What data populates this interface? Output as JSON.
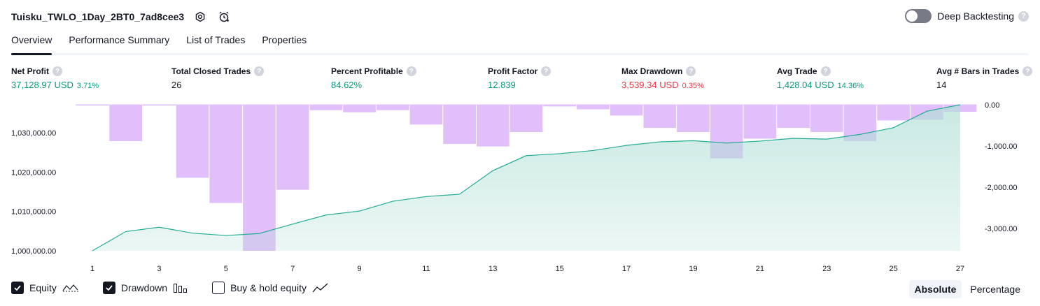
{
  "header": {
    "title": "Tuisku_TWLO_1Day_2BT0_7ad8cee3",
    "deep_backtesting_label": "Deep Backtesting"
  },
  "tabs": [
    {
      "label": "Overview",
      "active": true
    },
    {
      "label": "Performance Summary",
      "active": false
    },
    {
      "label": "List of Trades",
      "active": false
    },
    {
      "label": "Properties",
      "active": false
    }
  ],
  "metrics": {
    "net_profit": {
      "label": "Net Profit",
      "value": "37,128.97 USD",
      "pct": "3.71%"
    },
    "total_closed_trades": {
      "label": "Total Closed Trades",
      "value": "26"
    },
    "percent_profitable": {
      "label": "Percent Profitable",
      "value": "84.62%"
    },
    "profit_factor": {
      "label": "Profit Factor",
      "value": "12.839"
    },
    "max_drawdown": {
      "label": "Max Drawdown",
      "value": "3,539.34 USD",
      "pct": "0.35%"
    },
    "avg_trade": {
      "label": "Avg Trade",
      "value": "1,428.04 USD",
      "pct": "14.36%"
    },
    "avg_bars": {
      "label": "Avg # Bars in Trades",
      "value": "14"
    }
  },
  "legend": {
    "equity_label": "Equity",
    "drawdown_label": "Drawdown",
    "buyhold_label": "Buy & hold equity",
    "equity_checked": true,
    "drawdown_checked": true,
    "buyhold_checked": false
  },
  "scale_toggle": {
    "absolute_label": "Absolute",
    "percentage_label": "Percentage",
    "selected": "Absolute"
  },
  "colors": {
    "equity_line": "#22ab94",
    "equity_fill": "#b2dfd6",
    "drawdown_fill": "#e1bffb",
    "positive": "#089981",
    "negative": "#f23645"
  },
  "chart_data": {
    "type": "area",
    "x": [
      1,
      2,
      3,
      4,
      5,
      6,
      7,
      8,
      9,
      10,
      11,
      12,
      13,
      14,
      15,
      16,
      17,
      18,
      19,
      20,
      21,
      22,
      23,
      24,
      25,
      26,
      27
    ],
    "x_ticks": [
      "1",
      "3",
      "5",
      "7",
      "9",
      "11",
      "13",
      "15",
      "17",
      "19",
      "21",
      "23",
      "25",
      "27"
    ],
    "series": [
      {
        "axis": "left",
        "values": [
          1000000,
          1004900,
          1006000,
          1004500,
          1003900,
          1004400,
          1006800,
          1009100,
          1010100,
          1012600,
          1013800,
          1014400,
          1020400,
          1024200,
          1024700,
          1025500,
          1026800,
          1027700,
          1028000,
          1027400,
          1027900,
          1028600,
          1028400,
          1029600,
          1031300,
          1035500,
          1037129
        ]
      },
      {
        "axis": "right",
        "values": [
          -10,
          -880,
          -5,
          -1770,
          -2380,
          -3540,
          -2060,
          -130,
          -180,
          -130,
          -480,
          -950,
          -1010,
          -660,
          -40,
          -110,
          -260,
          -560,
          -660,
          -1300,
          -820,
          -560,
          -660,
          -880,
          -380,
          -360,
          -170
        ]
      }
    ],
    "y_left_ticks": [
      "1,000,000.00",
      "1,010,000.00",
      "1,020,000.00",
      "1,030,000.00"
    ],
    "y_left_range": [
      1000000,
      1037129
    ],
    "y_right_ticks": [
      "0.00",
      "-1,000.00",
      "-2,000.00",
      "-3,000.00"
    ],
    "y_right_range": [
      -3540,
      0
    ],
    "grid": false
  }
}
